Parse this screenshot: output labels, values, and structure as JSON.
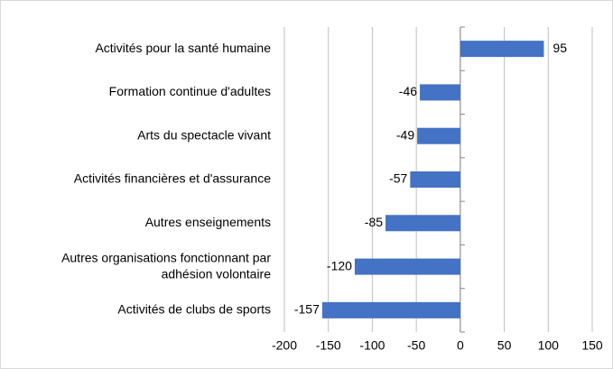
{
  "chart_data": {
    "type": "barh",
    "categories": [
      "Activités pour la santé humaine",
      "Formation continue d'adultes",
      "Arts du spectacle vivant",
      "Activités financières et d'assurance",
      "Autres enseignements",
      "Autres organisations fonctionnant par adhésion volontaire",
      "Activités de clubs de sports"
    ],
    "values": [
      95,
      -46,
      -49,
      -57,
      -85,
      -120,
      -157
    ],
    "color": "#4472c4",
    "xlim": [
      -200,
      150
    ],
    "xticks": [
      -200,
      -150,
      -100,
      -50,
      0,
      50,
      100,
      150
    ],
    "grid": true
  }
}
